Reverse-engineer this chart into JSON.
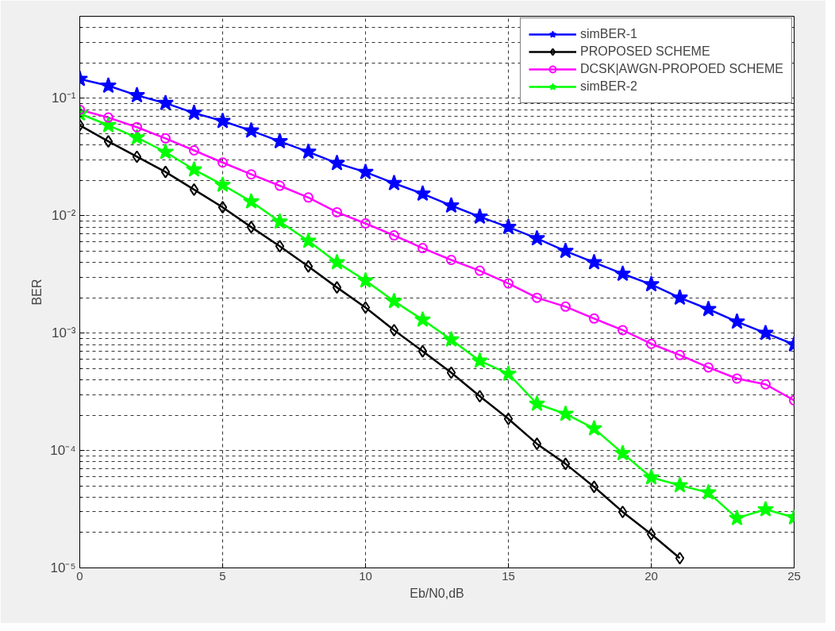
{
  "chart_data": {
    "type": "line",
    "xlabel": "Eb/N0,dB",
    "ylabel": "BER",
    "log": "y",
    "grid": true,
    "legend": "top right",
    "line_style": "solid",
    "xlim": [
      0,
      25
    ],
    "xticks": [
      0,
      5,
      10,
      15,
      20,
      25
    ],
    "ylim": [
      1e-05,
      0.5
    ],
    "yticks": [
      {
        "value": 1e-05,
        "label": "10⁻⁵"
      },
      {
        "value": 0.0001,
        "label": "10⁻⁴"
      },
      {
        "value": 0.001,
        "label": "10⁻³"
      },
      {
        "value": 0.01,
        "label": "10⁻²"
      },
      {
        "value": 0.1,
        "label": "10⁻¹"
      }
    ],
    "series": [
      {
        "name": "simBER-1",
        "color": "#0000ff",
        "marker": "star",
        "x": [
          0,
          1,
          2,
          3,
          4,
          5,
          6,
          7,
          8,
          9,
          10,
          11,
          12,
          13,
          14,
          15,
          16,
          17,
          18,
          19,
          20,
          21,
          22,
          23,
          24,
          25
        ],
        "values": [
          0.146,
          0.128,
          0.106,
          0.091,
          0.075,
          0.064,
          0.053,
          0.043,
          0.035,
          0.028,
          0.0235,
          0.0189,
          0.0154,
          0.0122,
          0.0098,
          0.008,
          0.0064,
          0.005,
          0.004,
          0.0032,
          0.0026,
          0.002,
          0.0016,
          0.00125,
          0.001,
          0.0008
        ]
      },
      {
        "name": "PROPOSED SCHEME",
        "color": "#000000",
        "marker": "diamond",
        "x": [
          0,
          1,
          2,
          3,
          4,
          5,
          6,
          7,
          8,
          9,
          10,
          11,
          12,
          13,
          14,
          15,
          16,
          17,
          18,
          19,
          20,
          21
        ],
        "values": [
          0.059,
          0.043,
          0.0318,
          0.0236,
          0.0167,
          0.0118,
          0.008,
          0.0055,
          0.0037,
          0.00245,
          0.00165,
          0.00106,
          0.0007,
          0.00046,
          0.00029,
          0.000186,
          0.000114,
          7.7e-05,
          4.9e-05,
          3e-05,
          1.94e-05,
          1.21e-05
        ]
      },
      {
        "name": "DCSK|AWGN-PROPOED SCHEME",
        "color": "#ff00ff",
        "marker": "circle",
        "x": [
          0,
          1,
          2,
          3,
          4,
          5,
          6,
          7,
          8,
          9,
          10,
          11,
          12,
          13,
          14,
          15,
          16,
          17,
          18,
          19,
          20,
          21,
          22,
          23,
          24,
          25
        ],
        "values": [
          0.08,
          0.0686,
          0.0568,
          0.0456,
          0.036,
          0.0284,
          0.0225,
          0.018,
          0.0143,
          0.0107,
          0.0086,
          0.0068,
          0.0053,
          0.0042,
          0.0034,
          0.00265,
          0.002,
          0.00168,
          0.00133,
          0.00106,
          0.00081,
          0.00065,
          0.00051,
          0.00041,
          0.000366,
          0.000267
        ]
      },
      {
        "name": "simBER-2",
        "color": "#00ff00",
        "marker": "star",
        "x": [
          0,
          1,
          2,
          3,
          4,
          5,
          6,
          7,
          8,
          9,
          10,
          11,
          12,
          13,
          14,
          15,
          16,
          17,
          18,
          19,
          20,
          21,
          22,
          23,
          24,
          25
        ],
        "values": [
          0.074,
          0.059,
          0.0463,
          0.0349,
          0.0247,
          0.0183,
          0.0132,
          0.0089,
          0.0061,
          0.004,
          0.0028,
          0.00187,
          0.0013,
          0.00088,
          0.00058,
          0.00045,
          0.00025,
          0.000205,
          0.000154,
          9.47e-05,
          5.9e-05,
          5.05e-05,
          4.38e-05,
          2.65e-05,
          3.15e-05,
          2.69e-05
        ]
      }
    ]
  }
}
